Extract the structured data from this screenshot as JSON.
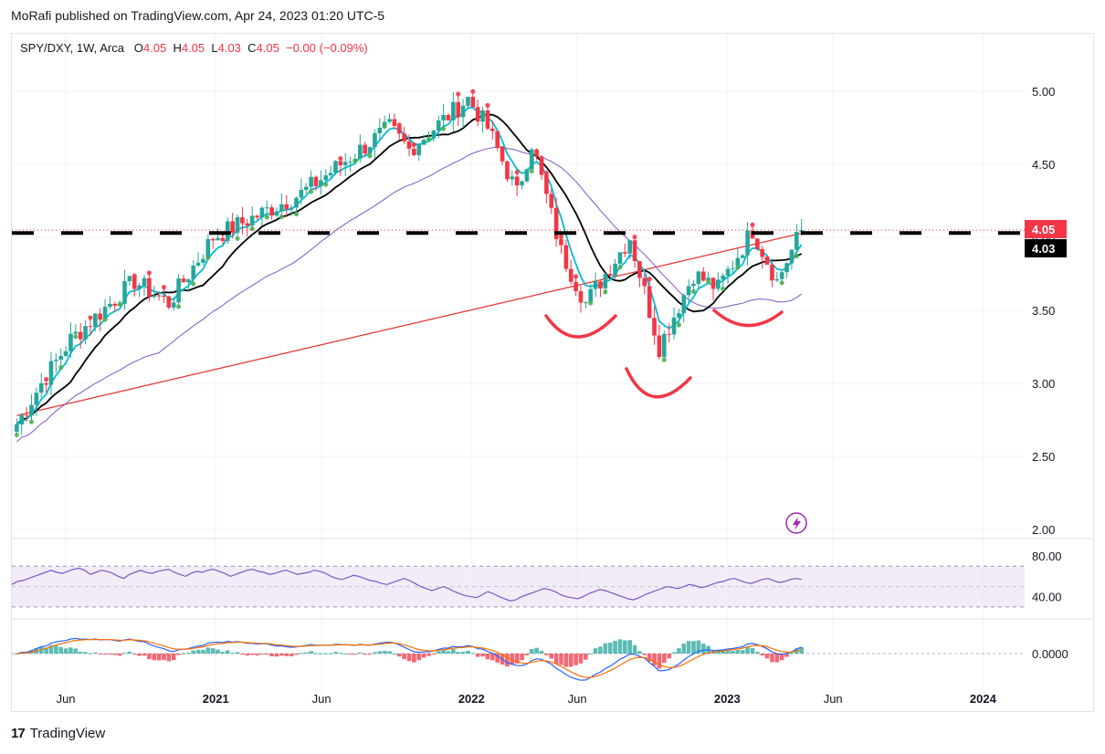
{
  "header": {
    "publisher": "MoRafi published on TradingView.com, Apr 24, 2023 01:20 UTC-5"
  },
  "legend": {
    "symbol": "SPY/DXY, 1W, Arca",
    "open_label": "O",
    "open": "4.05",
    "high_label": "H",
    "high": "4.05",
    "low_label": "L",
    "low": "4.03",
    "close_label": "C",
    "close": "4.05",
    "change": "−0.00 (−0.09%)"
  },
  "footer": {
    "brand": "TradingView",
    "mark": "17"
  },
  "colors": {
    "up": "#26a69a",
    "down": "#f23645",
    "ema_fast": "#00bcd4",
    "sma_mid": "#000000",
    "sma_slow": "#7e57c2",
    "sma_long": "#e53935",
    "annotation": "#f23645",
    "rsi": "#7e57c2",
    "macd": "#2962ff",
    "signal": "#ff6d00"
  },
  "chart_data": {
    "type": "candlestick",
    "interval": "1W",
    "y_ticks": [
      "5.00",
      "4.50",
      "4.00",
      "3.50",
      "3.00",
      "2.50",
      "2.00"
    ],
    "x_ticks": [
      "Jun",
      "2021",
      "Jun",
      "2022",
      "Jun",
      "2023",
      "Jun",
      "2024"
    ],
    "ylim": [
      1.98,
      5.3
    ],
    "last_price": "4.05",
    "horizontal_level": "4.03",
    "horizontal_level_value": 4.03,
    "anchors": [
      {
        "date": "2020-03-23",
        "close": 2.72
      },
      {
        "date": "2020-04-27",
        "close": 3.0
      },
      {
        "date": "2020-06-08",
        "close": 3.3
      },
      {
        "date": "2020-09-07",
        "close": 3.7
      },
      {
        "date": "2020-10-26",
        "close": 3.55
      },
      {
        "date": "2020-12-28",
        "close": 4.0
      },
      {
        "date": "2021-05-03",
        "close": 4.3
      },
      {
        "date": "2021-09-06",
        "close": 4.75
      },
      {
        "date": "2021-10-04",
        "close": 4.6
      },
      {
        "date": "2021-12-27",
        "close": 4.95
      },
      {
        "date": "2022-01-24",
        "close": 4.75
      },
      {
        "date": "2022-03-07",
        "close": 4.3
      },
      {
        "date": "2022-03-28",
        "close": 4.65
      },
      {
        "date": "2022-05-09",
        "close": 3.9
      },
      {
        "date": "2022-06-13",
        "close": 3.55
      },
      {
        "date": "2022-08-15",
        "close": 4.0
      },
      {
        "date": "2022-09-26",
        "close": 3.25
      },
      {
        "date": "2022-11-14",
        "close": 3.75
      },
      {
        "date": "2022-12-19",
        "close": 3.65
      },
      {
        "date": "2023-02-06",
        "close": 4.05
      },
      {
        "date": "2023-03-13",
        "close": 3.7
      },
      {
        "date": "2023-04-17",
        "close": 4.05
      }
    ],
    "indicators": [
      "EMA fast",
      "SMA 20",
      "SMA 50",
      "SMA 200"
    ],
    "rsi": {
      "ticks": [
        "80.00",
        "40.00"
      ],
      "band": [
        30,
        70
      ],
      "ylim": [
        20,
        90
      ],
      "values": [
        52,
        55,
        56,
        58,
        60,
        62,
        64,
        66,
        64,
        63,
        65,
        67,
        68,
        66,
        62,
        64,
        66,
        65,
        63,
        60,
        58,
        62,
        64,
        66,
        64,
        63,
        65,
        66,
        67,
        64,
        62,
        60,
        63,
        65,
        64,
        66,
        67,
        65,
        63,
        60,
        62,
        64,
        66,
        67,
        65,
        64,
        62,
        63,
        65,
        66,
        64,
        62,
        63,
        64,
        66,
        65,
        63,
        60,
        58,
        57,
        59,
        61,
        60,
        58,
        56,
        55,
        53,
        52,
        54,
        56,
        58,
        56,
        53,
        50,
        48,
        46,
        48,
        50,
        48,
        45,
        43,
        41,
        40,
        39,
        42,
        45,
        43,
        40,
        38,
        36,
        37,
        40,
        42,
        44,
        46,
        48,
        47,
        45,
        42,
        40,
        39,
        38,
        40,
        43,
        45,
        47,
        46,
        44,
        42,
        40,
        38,
        37,
        39,
        42,
        44,
        46,
        48,
        50,
        49,
        48,
        50,
        52,
        51,
        49,
        50,
        52,
        54,
        55,
        57,
        58,
        56,
        54,
        53,
        55,
        57,
        58,
        56,
        54,
        55,
        57,
        58,
        57
      ]
    },
    "macd": {
      "tick": "0.0000",
      "ylim": [
        -0.35,
        0.25
      ]
    }
  }
}
